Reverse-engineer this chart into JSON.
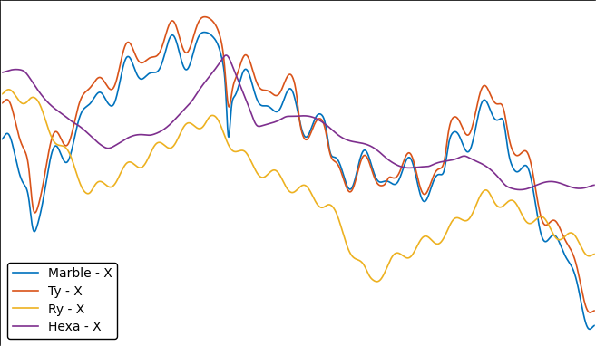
{
  "title": "",
  "xlabel": "",
  "ylabel": "",
  "line_colors": [
    "#0072bd",
    "#d95319",
    "#edb120",
    "#7e2f8e"
  ],
  "line_labels": [
    "Marble - X",
    "Ty - X",
    "Ry - X",
    "Hexa - X"
  ],
  "line_width": 1.2,
  "background_color": "#ffffff",
  "outer_background": "#000000",
  "grid_color": "#d0d0d0",
  "xlim": [
    0,
    1
  ],
  "ylim": [
    -1,
    1
  ],
  "figsize": [
    6.57,
    3.82
  ],
  "dpi": 100,
  "legend_loc": "lower left",
  "legend_fontsize": 10
}
